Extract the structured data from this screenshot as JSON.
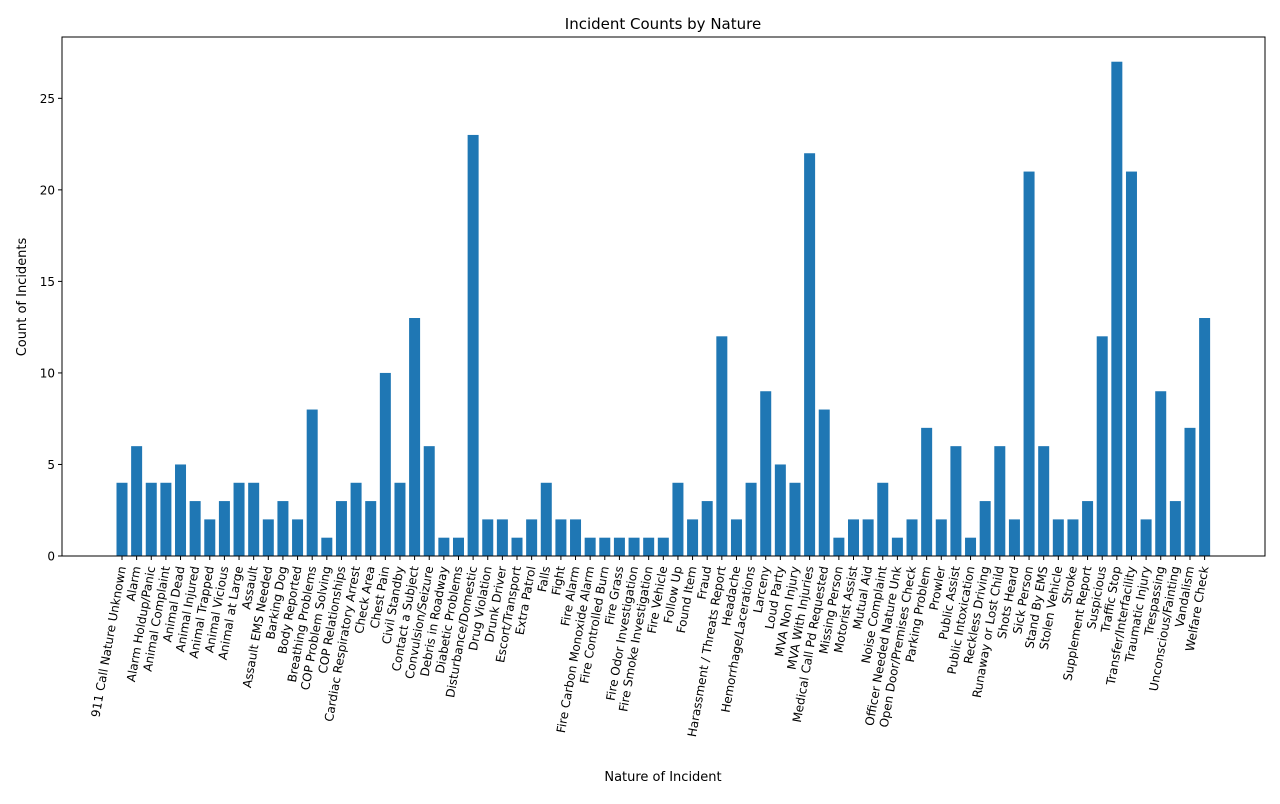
{
  "chart_data": {
    "type": "bar",
    "title": "Incident Counts by Nature",
    "xlabel": "Nature of Incident",
    "ylabel": "Count of Incidents",
    "ylim": [
      0,
      28.35
    ],
    "yticks": [
      0,
      5,
      10,
      15,
      20,
      25
    ],
    "grid": false,
    "bar_color": "#1f77b4",
    "categories": [
      "911 Call Nature Unknown",
      "Alarm",
      "Alarm Holdup/Panic",
      "Animal Complaint",
      "Animal Dead",
      "Animal Injured",
      "Animal Trapped",
      "Animal Vicious",
      "Animal at Large",
      "Assault",
      "Assault EMS Needed",
      "Barking Dog",
      "Body Reported",
      "Breathing Problems",
      "COP Problem Solving",
      "COP Relationships",
      "Cardiac Respiratory Arrest",
      "Check Area",
      "Chest Pain",
      "Civil Standby",
      "Contact a Subject",
      "Convulsion/Seizure",
      "Debris in Roadway",
      "Diabetic Problems",
      "Disturbance/Domestic",
      "Drug Violation",
      "Drunk Driver",
      "Escort/Transport",
      "Extra Patrol",
      "Falls",
      "Fight",
      "Fire Alarm",
      "Fire Carbon Monoxide Alarm",
      "Fire Controlled Burn",
      "Fire Grass",
      "Fire Odor Investigation",
      "Fire Smoke Investigation",
      "Fire Vehicle",
      "Follow Up",
      "Found Item",
      "Fraud",
      "Harassment / Threats Report",
      "Headache",
      "Hemorrhage/Lacerations",
      "Larceny",
      "Loud Party",
      "MVA Non Injury",
      "MVA With Injuries",
      "Medical Call Pd Requested",
      "Missing Person",
      "Motorist Assist",
      "Mutual Aid",
      "Noise Complaint",
      "Officer Needed Nature Unk",
      "Open Door/Premises Check",
      "Parking Problem",
      "Prowler",
      "Public Assist",
      "Public Intoxication",
      "Reckless Driving",
      "Runaway or Lost Child",
      "Shots Heard",
      "Sick Person",
      "Stand By EMS",
      "Stolen Vehicle",
      "Stroke",
      "Supplement Report",
      "Suspicious",
      "Traffic Stop",
      "Transfer/Interfacility",
      "Traumatic Injury",
      "Trespassing",
      "Unconscious/Fainting",
      "Vandalism",
      "Welfare Check"
    ],
    "values": [
      4,
      6,
      4,
      4,
      5,
      3,
      2,
      3,
      4,
      4,
      2,
      3,
      2,
      8,
      1,
      3,
      4,
      3,
      10,
      4,
      13,
      6,
      1,
      1,
      23,
      2,
      2,
      1,
      2,
      4,
      2,
      2,
      1,
      1,
      1,
      1,
      1,
      1,
      4,
      2,
      3,
      12,
      2,
      4,
      9,
      5,
      4,
      22,
      8,
      1,
      2,
      2,
      4,
      1,
      2,
      7,
      2,
      6,
      1,
      3,
      6,
      2,
      21,
      6,
      2,
      2,
      3,
      12,
      27,
      21,
      2,
      9,
      3,
      7,
      13
    ]
  }
}
